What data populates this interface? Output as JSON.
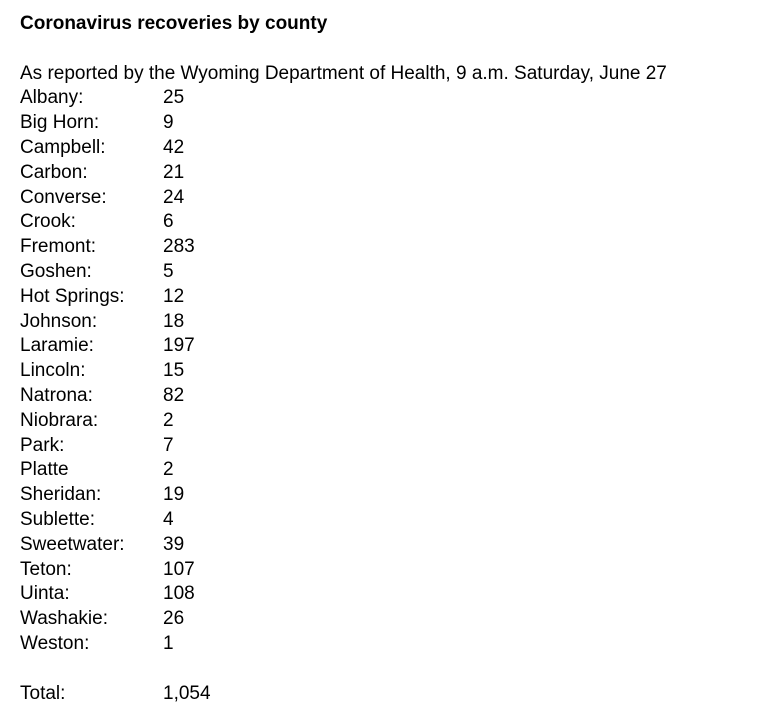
{
  "document": {
    "title": "Coronavirus recoveries by county",
    "subtitle": "As reported by the Wyoming Department of Health, 9 a.m. Saturday, June 27",
    "counties": [
      {
        "label": "Albany:",
        "value": "25"
      },
      {
        "label": "Big Horn:",
        "value": "9"
      },
      {
        "label": "Campbell:",
        "value": "42"
      },
      {
        "label": "Carbon:",
        "value": "21"
      },
      {
        "label": "Converse:",
        "value": "24"
      },
      {
        "label": "Crook:",
        "value": "6"
      },
      {
        "label": "Fremont:",
        "value": "283"
      },
      {
        "label": "Goshen:",
        "value": "5"
      },
      {
        "label": "Hot Springs:",
        "value": "12"
      },
      {
        "label": "Johnson:",
        "value": "18"
      },
      {
        "label": "Laramie:",
        "value": "197"
      },
      {
        "label": "Lincoln:",
        "value": "15"
      },
      {
        "label": "Natrona:",
        "value": "82"
      },
      {
        "label": "Niobrara:",
        "value": "2"
      },
      {
        "label": "Park:",
        "value": "7"
      },
      {
        "label": "Platte",
        "value": "2"
      },
      {
        "label": "Sheridan:",
        "value": "19"
      },
      {
        "label": "Sublette:",
        "value": "4"
      },
      {
        "label": "Sweetwater:",
        "value": "39"
      },
      {
        "label": "Teton:",
        "value": "107"
      },
      {
        "label": "Uinta:",
        "value": "108"
      },
      {
        "label": "Washakie:",
        "value": "26"
      },
      {
        "label": "Weston:",
        "value": "1"
      }
    ],
    "total": {
      "label": "Total:",
      "value": "1,054"
    },
    "colors": {
      "text": "#000000",
      "background": "#ffffff"
    }
  }
}
